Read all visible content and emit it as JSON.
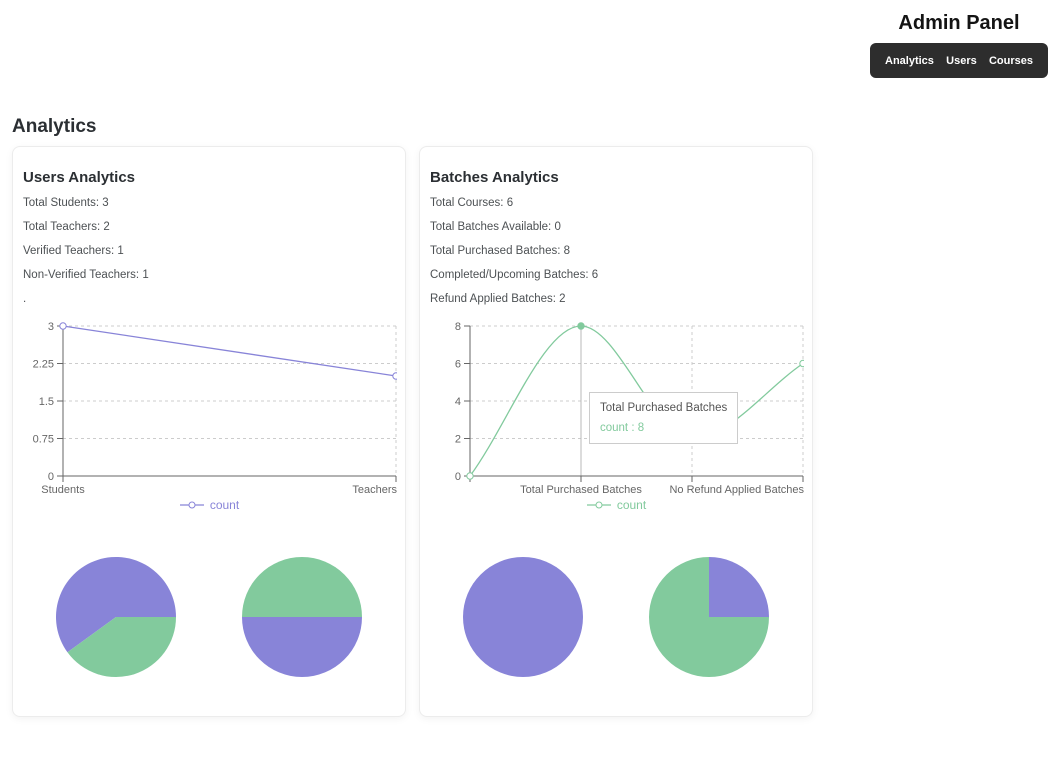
{
  "header": {
    "title": "Admin Panel",
    "nav": [
      {
        "label": "Analytics"
      },
      {
        "label": "Users"
      },
      {
        "label": "Courses"
      }
    ]
  },
  "page": {
    "heading": "Analytics"
  },
  "colors": {
    "purple": "#8884d8",
    "green": "#82ca9d",
    "nav_bg": "#2d2d2d",
    "axis": "#666666",
    "gridline": "#cccccc"
  },
  "cards": [
    {
      "title": "Users Analytics",
      "stats": [
        "Total Students: 3",
        "Total Teachers: 2",
        "Verified Teachers: 1",
        "Non-Verified Teachers: 1",
        "."
      ]
    },
    {
      "title": "Batches Analytics",
      "stats": [
        "Total Courses: 6",
        "Total Batches Available: 0",
        "Total Purchased Batches: 8",
        "Completed/Upcoming Batches: 6",
        "Refund Applied Batches: 2"
      ]
    }
  ],
  "chart_data": [
    {
      "id": "users-line",
      "type": "line",
      "categories": [
        "Students",
        "Teachers"
      ],
      "series": [
        {
          "name": "count",
          "values": [
            3,
            2
          ],
          "color": "#8884d8"
        }
      ],
      "ylim": [
        0,
        3
      ],
      "yticks": [
        0,
        0.75,
        1.5,
        2.25,
        3
      ],
      "grid": true,
      "curve": "linear",
      "legend_position": "bottom"
    },
    {
      "id": "batches-line",
      "type": "line",
      "categories": [
        "",
        "Total Purchased Batches",
        "",
        "No Refund Applied Batches"
      ],
      "series": [
        {
          "name": "count",
          "values": [
            0,
            8,
            2,
            6
          ],
          "color": "#82ca9d"
        }
      ],
      "ylim": [
        0,
        8
      ],
      "yticks": [
        0,
        2,
        4,
        6,
        8
      ],
      "grid": true,
      "curve": "smooth",
      "legend_position": "bottom",
      "active_point": 1,
      "cursor_at": 1,
      "tooltip": {
        "label": "Total Purchased Batches",
        "value_text": "count : 8"
      }
    },
    {
      "id": "users-pie-students-teachers",
      "type": "pie",
      "slices": [
        {
          "label": "Students",
          "value": 3,
          "color": "#8884d8"
        },
        {
          "label": "Teachers",
          "value": 2,
          "color": "#82ca9d"
        }
      ]
    },
    {
      "id": "users-pie-verified",
      "type": "pie",
      "slices": [
        {
          "label": "Verified Teachers",
          "value": 1,
          "color": "#82ca9d"
        },
        {
          "label": "Non-Verified Teachers",
          "value": 1,
          "color": "#8884d8"
        }
      ]
    },
    {
      "id": "batches-pie-purchased",
      "type": "pie",
      "slices": [
        {
          "label": "Total Purchased Batches",
          "value": 8,
          "color": "#8884d8"
        },
        {
          "label": "Total Batches Available",
          "value": 0,
          "color": "#82ca9d"
        }
      ]
    },
    {
      "id": "batches-pie-refund",
      "type": "pie",
      "slices": [
        {
          "label": "Refund Applied Batches",
          "value": 2,
          "color": "#8884d8"
        },
        {
          "label": "No Refund Applied Batches",
          "value": 6,
          "color": "#82ca9d"
        }
      ]
    }
  ]
}
